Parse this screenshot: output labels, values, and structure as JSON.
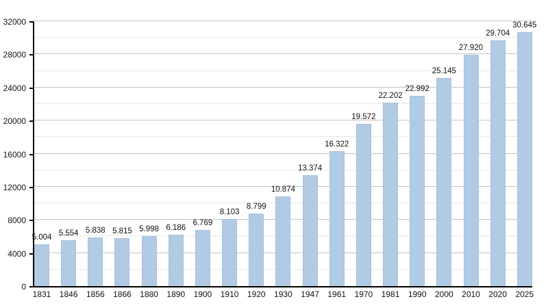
{
  "chart_data": {
    "type": "bar",
    "title": "",
    "xlabel": "",
    "ylabel": "",
    "categories": [
      "1831",
      "1846",
      "1856",
      "1866",
      "1880",
      "1890",
      "1900",
      "1910",
      "1920",
      "1930",
      "1947",
      "1961",
      "1970",
      "1981",
      "1990",
      "2000",
      "2010",
      "2020",
      "2025"
    ],
    "values": [
      5004,
      5554,
      5838,
      5815,
      5998,
      6186,
      6769,
      8103,
      8799,
      10874,
      13374,
      16322,
      19572,
      22202,
      22992,
      25145,
      27920,
      29704,
      30645
    ],
    "value_labels": [
      "5.004",
      "5.554",
      "5.838",
      "5.815",
      "5.998",
      "6.186",
      "6.769",
      "8.103",
      "8.799",
      "10.874",
      "13.374",
      "16.322",
      "19.572",
      "22.202",
      "22.992",
      "25.145",
      "27.920",
      "29.704",
      "30.645"
    ],
    "ylim": [
      0,
      32000
    ],
    "y_major_ticks": [
      0,
      4000,
      8000,
      12000,
      16000,
      20000,
      24000,
      28000,
      32000
    ],
    "y_major_tick_labels": [
      "0",
      "4000",
      "8000",
      "12000",
      "16000",
      "20000",
      "24000",
      "28000",
      "32000"
    ],
    "y_minor_interval": 2000,
    "y_major_interval": 4000,
    "grid": true,
    "legend_position": "none",
    "bar_color": "#b2cbe5"
  },
  "colors": {
    "bar_fill": "#b2cbe5",
    "bar_border": "#a5c0dd",
    "grid_major": "#c3c3c3",
    "grid_minor": "#e7e7e7",
    "axis": "#000000",
    "text": "#111111",
    "background": "#ffffff"
  }
}
